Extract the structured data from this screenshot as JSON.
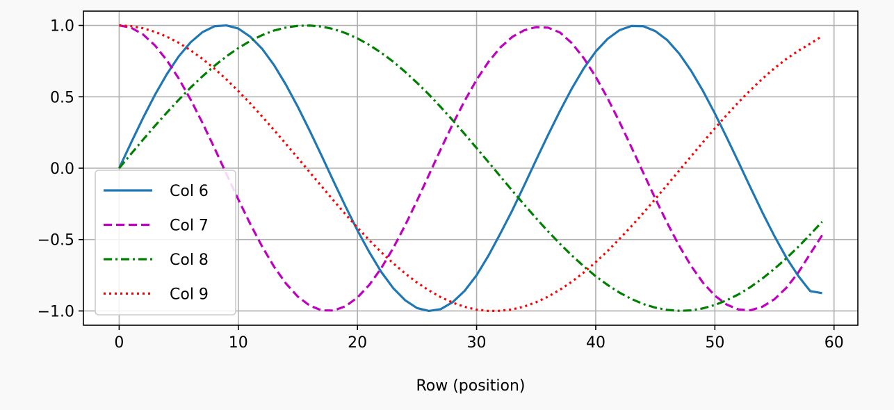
{
  "chart_data": {
    "type": "line",
    "title": "",
    "xlabel": "Row (position)",
    "ylabel": "",
    "xlim": [
      -3,
      62
    ],
    "ylim": [
      -1.1,
      1.1
    ],
    "xticks": [
      0,
      10,
      20,
      30,
      40,
      50,
      60
    ],
    "xtick_labels": [
      "0",
      "10",
      "20",
      "30",
      "40",
      "50",
      "60"
    ],
    "yticks": [
      -1.0,
      -0.5,
      0.0,
      0.5,
      1.0
    ],
    "ytick_labels": [
      "−1.0",
      "−0.5",
      "0.0",
      "0.5",
      "1.0"
    ],
    "grid": true,
    "legend_position": "center-left",
    "x": [
      0,
      1,
      2,
      3,
      4,
      5,
      6,
      7,
      8,
      9,
      10,
      11,
      12,
      13,
      14,
      15,
      16,
      17,
      18,
      19,
      20,
      21,
      22,
      23,
      24,
      25,
      26,
      27,
      28,
      29,
      30,
      31,
      32,
      33,
      34,
      35,
      36,
      37,
      38,
      39,
      40,
      41,
      42,
      43,
      44,
      45,
      46,
      47,
      48,
      49,
      50,
      51,
      52,
      53,
      54,
      55,
      56,
      57,
      58,
      59
    ],
    "series": [
      {
        "name": "Col 6",
        "color": "#1f77b4",
        "dash": "solid",
        "values": [
          0,
          0.178,
          0.351,
          0.513,
          0.658,
          0.783,
          0.882,
          0.953,
          0.994,
          1.0,
          0.978,
          0.921,
          0.836,
          0.722,
          0.584,
          0.429,
          0.261,
          0.086,
          -0.093,
          -0.268,
          -0.436,
          -0.589,
          -0.727,
          -0.84,
          -0.925,
          -0.98,
          -1.0,
          -0.987,
          -0.938,
          -0.859,
          -0.75,
          -0.612,
          -0.457,
          -0.295,
          -0.12,
          0.058,
          0.233,
          0.401,
          0.559,
          0.7,
          0.817,
          0.906,
          0.967,
          0.996,
          0.994,
          0.96,
          0.897,
          0.803,
          0.683,
          0.541,
          0.383,
          0.214,
          0.039,
          -0.138,
          -0.312,
          -0.476,
          -0.627,
          -0.755,
          -0.861,
          -0.875
        ]
      },
      {
        "name": "Col 7",
        "color": "#bf00bf",
        "dash": "dashed",
        "values": [
          1.0,
          0.984,
          0.937,
          0.86,
          0.756,
          0.628,
          0.48,
          0.316,
          0.141,
          -0.04,
          -0.219,
          -0.39,
          -0.549,
          -0.69,
          -0.808,
          -0.9,
          -0.963,
          -0.996,
          -0.997,
          -0.967,
          -0.906,
          -0.817,
          -0.7,
          -0.56,
          -0.401,
          -0.228,
          -0.047,
          0.134,
          0.309,
          0.472,
          0.619,
          0.745,
          0.846,
          0.92,
          0.966,
          0.988,
          0.984,
          0.95,
          0.875,
          0.77,
          0.64,
          0.489,
          0.323,
          0.146,
          -0.034,
          -0.213,
          -0.384,
          -0.543,
          -0.684,
          -0.802,
          -0.893,
          -0.956,
          -0.99,
          -0.995,
          -0.97,
          -0.918,
          -0.838,
          -0.731,
          -0.6,
          -0.47
        ]
      },
      {
        "name": "Col 8",
        "color": "#008000",
        "dash": "dashdot",
        "values": [
          0,
          0.1,
          0.199,
          0.296,
          0.389,
          0.479,
          0.565,
          0.644,
          0.717,
          0.783,
          0.841,
          0.891,
          0.932,
          0.964,
          0.985,
          0.997,
          0.999,
          0.992,
          0.974,
          0.946,
          0.909,
          0.863,
          0.808,
          0.746,
          0.675,
          0.598,
          0.516,
          0.427,
          0.335,
          0.239,
          0.141,
          0.042,
          -0.058,
          -0.158,
          -0.256,
          -0.351,
          -0.443,
          -0.53,
          -0.612,
          -0.688,
          -0.757,
          -0.818,
          -0.872,
          -0.916,
          -0.952,
          -0.977,
          -0.993,
          -0.999,
          -0.996,
          -0.982,
          -0.958,
          -0.925,
          -0.883,
          -0.832,
          -0.772,
          -0.705,
          -0.631,
          -0.551,
          -0.465,
          -0.375
        ]
      },
      {
        "name": "Col 9",
        "color": "#ff0000",
        "dash": "dotted",
        "values": [
          1.0,
          0.995,
          0.98,
          0.955,
          0.921,
          0.878,
          0.825,
          0.765,
          0.697,
          0.622,
          0.54,
          0.454,
          0.362,
          0.267,
          0.17,
          0.071,
          -0.029,
          -0.128,
          -0.227,
          -0.323,
          -0.416,
          -0.505,
          -0.589,
          -0.666,
          -0.737,
          -0.801,
          -0.856,
          -0.904,
          -0.942,
          -0.971,
          -0.991,
          -1.0,
          -0.999,
          -0.989,
          -0.969,
          -0.939,
          -0.9,
          -0.851,
          -0.795,
          -0.73,
          -0.658,
          -0.58,
          -0.495,
          -0.406,
          -0.313,
          -0.216,
          -0.117,
          -0.017,
          0.083,
          0.182,
          0.279,
          0.373,
          0.463,
          0.548,
          0.627,
          0.7,
          0.765,
          0.822,
          0.872,
          0.925
        ]
      }
    ]
  }
}
